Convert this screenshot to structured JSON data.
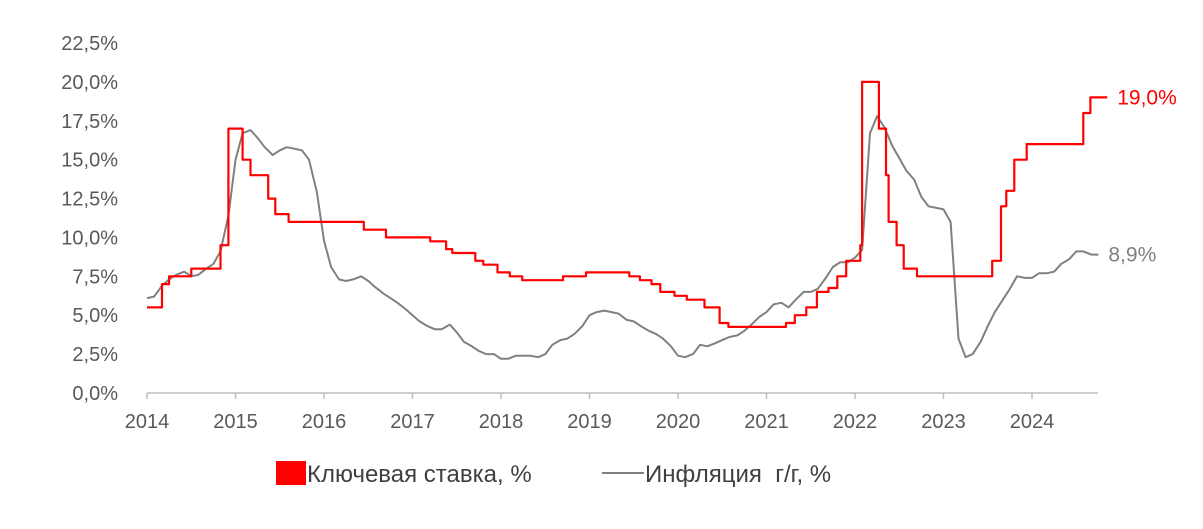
{
  "chart_data": {
    "type": "line",
    "title": "",
    "xlabel": "",
    "ylabel": "",
    "ylim": [
      0,
      22.5
    ],
    "xlim": [
      2014,
      2024.85
    ],
    "y_ticks": [
      {
        "value": 0,
        "label": "0,0%"
      },
      {
        "value": 2.5,
        "label": "2,5%"
      },
      {
        "value": 5,
        "label": "5,0%"
      },
      {
        "value": 7.5,
        "label": "7,5%"
      },
      {
        "value": 10,
        "label": "10,0%"
      },
      {
        "value": 12.5,
        "label": "12,5%"
      },
      {
        "value": 15,
        "label": "15,0%"
      },
      {
        "value": 17.5,
        "label": "17,5%"
      },
      {
        "value": 20,
        "label": "20,0%"
      },
      {
        "value": 22.5,
        "label": "22,5%"
      }
    ],
    "x_ticks": [
      {
        "value": 2014,
        "label": "2014"
      },
      {
        "value": 2015,
        "label": "2015"
      },
      {
        "value": 2016,
        "label": "2016"
      },
      {
        "value": 2017,
        "label": "2017"
      },
      {
        "value": 2018,
        "label": "2018"
      },
      {
        "value": 2019,
        "label": "2019"
      },
      {
        "value": 2020,
        "label": "2020"
      },
      {
        "value": 2021,
        "label": "2021"
      },
      {
        "value": 2022,
        "label": "2022"
      },
      {
        "value": 2023,
        "label": "2023"
      },
      {
        "value": 2024,
        "label": "2024"
      }
    ],
    "grid": false,
    "legend_position": "bottom",
    "series": [
      {
        "name": "Ключевая ставка, %",
        "color": "#ff0000",
        "style": "step",
        "end_label": "19,0%",
        "points": [
          [
            2014.0,
            5.5
          ],
          [
            2014.17,
            7.0
          ],
          [
            2014.25,
            7.5
          ],
          [
            2014.5,
            8.0
          ],
          [
            2014.83,
            9.5
          ],
          [
            2014.92,
            17.0
          ],
          [
            2015.08,
            15.0
          ],
          [
            2015.17,
            14.0
          ],
          [
            2015.37,
            12.5
          ],
          [
            2015.45,
            11.5
          ],
          [
            2015.6,
            11.0
          ],
          [
            2016.45,
            10.5
          ],
          [
            2016.7,
            10.0
          ],
          [
            2017.2,
            9.75
          ],
          [
            2017.38,
            9.25
          ],
          [
            2017.45,
            9.0
          ],
          [
            2017.71,
            8.5
          ],
          [
            2017.8,
            8.25
          ],
          [
            2017.96,
            7.75
          ],
          [
            2018.1,
            7.5
          ],
          [
            2018.24,
            7.25
          ],
          [
            2018.7,
            7.5
          ],
          [
            2018.96,
            7.75
          ],
          [
            2019.45,
            7.5
          ],
          [
            2019.57,
            7.25
          ],
          [
            2019.7,
            7.0
          ],
          [
            2019.8,
            6.5
          ],
          [
            2019.96,
            6.25
          ],
          [
            2020.1,
            6.0
          ],
          [
            2020.3,
            5.5
          ],
          [
            2020.47,
            4.5
          ],
          [
            2020.57,
            4.25
          ],
          [
            2021.22,
            4.5
          ],
          [
            2021.32,
            5.0
          ],
          [
            2021.45,
            5.5
          ],
          [
            2021.57,
            6.5
          ],
          [
            2021.7,
            6.75
          ],
          [
            2021.8,
            7.5
          ],
          [
            2021.9,
            8.5
          ],
          [
            2022.06,
            9.5
          ],
          [
            2022.08,
            20.0
          ],
          [
            2022.27,
            17.0
          ],
          [
            2022.35,
            14.0
          ],
          [
            2022.38,
            11.0
          ],
          [
            2022.47,
            9.5
          ],
          [
            2022.55,
            8.0
          ],
          [
            2022.7,
            7.5
          ],
          [
            2023.55,
            8.5
          ],
          [
            2023.65,
            12.0
          ],
          [
            2023.71,
            13.0
          ],
          [
            2023.8,
            15.0
          ],
          [
            2023.94,
            16.0
          ],
          [
            2024.0,
            16.0
          ],
          [
            2024.58,
            18.0
          ],
          [
            2024.66,
            19.0
          ],
          [
            2024.85,
            19.0
          ]
        ]
      },
      {
        "name": "Инфляция  г/г, %",
        "color": "#808080",
        "style": "line",
        "end_label": "8,9%",
        "points": [
          [
            2014.0,
            6.1
          ],
          [
            2014.08,
            6.2
          ],
          [
            2014.17,
            6.9
          ],
          [
            2014.25,
            7.3
          ],
          [
            2014.33,
            7.6
          ],
          [
            2014.42,
            7.8
          ],
          [
            2014.5,
            7.5
          ],
          [
            2014.58,
            7.6
          ],
          [
            2014.67,
            8.0
          ],
          [
            2014.75,
            8.3
          ],
          [
            2014.83,
            9.1
          ],
          [
            2014.92,
            11.4
          ],
          [
            2015.0,
            15.0
          ],
          [
            2015.08,
            16.7
          ],
          [
            2015.17,
            16.9
          ],
          [
            2015.25,
            16.4
          ],
          [
            2015.33,
            15.8
          ],
          [
            2015.42,
            15.3
          ],
          [
            2015.5,
            15.6
          ],
          [
            2015.58,
            15.8
          ],
          [
            2015.67,
            15.7
          ],
          [
            2015.75,
            15.6
          ],
          [
            2015.83,
            15.0
          ],
          [
            2015.92,
            12.9
          ],
          [
            2016.0,
            9.8
          ],
          [
            2016.08,
            8.1
          ],
          [
            2016.17,
            7.3
          ],
          [
            2016.25,
            7.2
          ],
          [
            2016.33,
            7.3
          ],
          [
            2016.42,
            7.5
          ],
          [
            2016.5,
            7.2
          ],
          [
            2016.58,
            6.8
          ],
          [
            2016.67,
            6.4
          ],
          [
            2016.75,
            6.1
          ],
          [
            2016.83,
            5.8
          ],
          [
            2016.92,
            5.4
          ],
          [
            2017.0,
            5.0
          ],
          [
            2017.08,
            4.6
          ],
          [
            2017.17,
            4.3
          ],
          [
            2017.25,
            4.1
          ],
          [
            2017.33,
            4.1
          ],
          [
            2017.42,
            4.4
          ],
          [
            2017.5,
            3.9
          ],
          [
            2017.58,
            3.3
          ],
          [
            2017.67,
            3.0
          ],
          [
            2017.75,
            2.7
          ],
          [
            2017.83,
            2.5
          ],
          [
            2017.92,
            2.5
          ],
          [
            2018.0,
            2.2
          ],
          [
            2018.08,
            2.2
          ],
          [
            2018.17,
            2.4
          ],
          [
            2018.25,
            2.4
          ],
          [
            2018.33,
            2.4
          ],
          [
            2018.42,
            2.3
          ],
          [
            2018.5,
            2.5
          ],
          [
            2018.58,
            3.1
          ],
          [
            2018.67,
            3.4
          ],
          [
            2018.75,
            3.5
          ],
          [
            2018.83,
            3.8
          ],
          [
            2018.92,
            4.3
          ],
          [
            2019.0,
            5.0
          ],
          [
            2019.08,
            5.2
          ],
          [
            2019.17,
            5.3
          ],
          [
            2019.25,
            5.2
          ],
          [
            2019.33,
            5.1
          ],
          [
            2019.42,
            4.7
          ],
          [
            2019.5,
            4.6
          ],
          [
            2019.58,
            4.3
          ],
          [
            2019.67,
            4.0
          ],
          [
            2019.75,
            3.8
          ],
          [
            2019.83,
            3.5
          ],
          [
            2019.92,
            3.0
          ],
          [
            2020.0,
            2.4
          ],
          [
            2020.08,
            2.3
          ],
          [
            2020.17,
            2.5
          ],
          [
            2020.25,
            3.1
          ],
          [
            2020.33,
            3.0
          ],
          [
            2020.42,
            3.2
          ],
          [
            2020.5,
            3.4
          ],
          [
            2020.58,
            3.6
          ],
          [
            2020.67,
            3.7
          ],
          [
            2020.75,
            4.0
          ],
          [
            2020.83,
            4.4
          ],
          [
            2020.92,
            4.9
          ],
          [
            2021.0,
            5.2
          ],
          [
            2021.08,
            5.7
          ],
          [
            2021.17,
            5.8
          ],
          [
            2021.25,
            5.5
          ],
          [
            2021.33,
            6.0
          ],
          [
            2021.42,
            6.5
          ],
          [
            2021.5,
            6.5
          ],
          [
            2021.58,
            6.7
          ],
          [
            2021.67,
            7.4
          ],
          [
            2021.75,
            8.1
          ],
          [
            2021.83,
            8.4
          ],
          [
            2021.92,
            8.4
          ],
          [
            2022.0,
            8.7
          ],
          [
            2022.08,
            9.2
          ],
          [
            2022.17,
            16.7
          ],
          [
            2022.25,
            17.8
          ],
          [
            2022.33,
            17.1
          ],
          [
            2022.42,
            15.9
          ],
          [
            2022.5,
            15.1
          ],
          [
            2022.58,
            14.3
          ],
          [
            2022.67,
            13.7
          ],
          [
            2022.75,
            12.6
          ],
          [
            2022.83,
            12.0
          ],
          [
            2022.92,
            11.9
          ],
          [
            2023.0,
            11.8
          ],
          [
            2023.08,
            11.0
          ],
          [
            2023.17,
            3.5
          ],
          [
            2023.25,
            2.3
          ],
          [
            2023.33,
            2.5
          ],
          [
            2023.42,
            3.3
          ],
          [
            2023.5,
            4.3
          ],
          [
            2023.58,
            5.2
          ],
          [
            2023.67,
            6.0
          ],
          [
            2023.75,
            6.7
          ],
          [
            2023.83,
            7.5
          ],
          [
            2023.92,
            7.4
          ],
          [
            2024.0,
            7.4
          ],
          [
            2024.08,
            7.7
          ],
          [
            2024.17,
            7.7
          ],
          [
            2024.25,
            7.8
          ],
          [
            2024.33,
            8.3
          ],
          [
            2024.42,
            8.6
          ],
          [
            2024.5,
            9.1
          ],
          [
            2024.58,
            9.1
          ],
          [
            2024.67,
            8.9
          ],
          [
            2024.75,
            8.9
          ]
        ]
      }
    ]
  }
}
